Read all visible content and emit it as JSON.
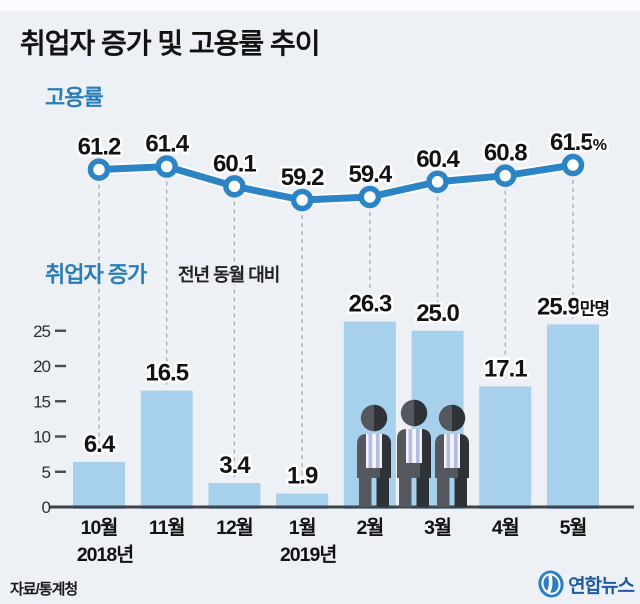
{
  "title": "취업자 증가 및 고용률 추이",
  "labels": {
    "employment_rate": "고용률",
    "employment_increase": "취업자 증가",
    "comparison_note": "전년 동월 대비"
  },
  "source": "자료/통계청",
  "logo_text": "연합뉴스",
  "chart_data": {
    "type": "line+bar",
    "categories": [
      "10월",
      "11월",
      "12월",
      "1월",
      "2월",
      "3월",
      "4월",
      "5월"
    ],
    "year_markers": [
      {
        "index": 0,
        "label": "2018년"
      },
      {
        "index": 3,
        "label": "2019년"
      }
    ],
    "series": [
      {
        "name": "고용률",
        "type": "line",
        "unit": "%",
        "unit_on_last_only": true,
        "values": [
          61.2,
          61.4,
          60.1,
          59.2,
          59.4,
          60.4,
          60.8,
          61.5
        ]
      },
      {
        "name": "취업자 증가",
        "type": "bar",
        "unit": "만명",
        "unit_on_last_only": true,
        "values": [
          6.4,
          16.5,
          3.4,
          1.9,
          26.3,
          25.0,
          17.1,
          25.9
        ]
      }
    ],
    "bar_axis_ticks": [
      0,
      5,
      10,
      15,
      20,
      25
    ],
    "grid": "dashed vertical connectors per category",
    "legend_position": "inline labels above each sub-chart",
    "colors": {
      "line": "#2c84c4",
      "bar": "#a6d0ec",
      "accent_text": "#2b7db8",
      "value_text": "#121212",
      "axis": "#3f444b",
      "dash": "#a9adb3",
      "background": "#edf0f4"
    }
  }
}
